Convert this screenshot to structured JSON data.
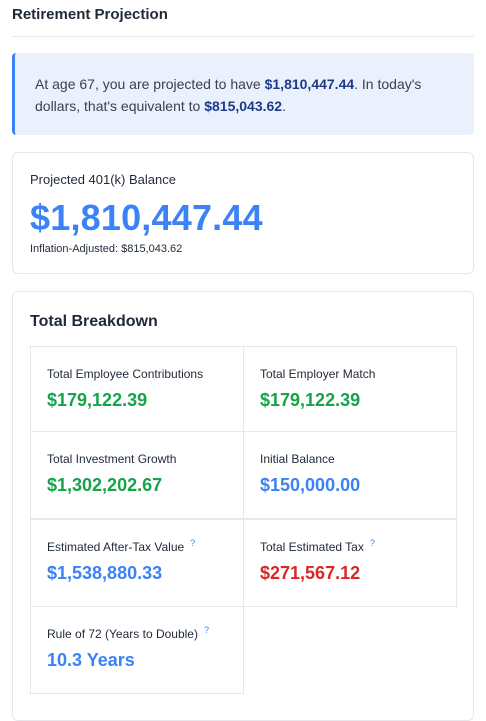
{
  "page": {
    "title": "Retirement Projection"
  },
  "summary": {
    "part1": "At age 67, you are projected to have ",
    "projected": "$1,810,447.44",
    "part2": ". In today's dollars, that's equivalent to ",
    "adjusted": "$815,043.62",
    "part3": "."
  },
  "balance": {
    "label": "Projected 401(k) Balance",
    "value": "$1,810,447.44",
    "sub": "Inflation-Adjusted: $815,043.62"
  },
  "breakdown": {
    "title": "Total Breakdown",
    "help_symbol": "?",
    "items": [
      {
        "label": "Total Employee Contributions",
        "value": "$179,122.39",
        "color": "#16a34a"
      },
      {
        "label": "Total Employer Match",
        "value": "$179,122.39",
        "color": "#16a34a"
      },
      {
        "label": "Total Investment Growth",
        "value": "$1,302,202.67",
        "color": "#16a34a"
      },
      {
        "label": "Initial Balance",
        "value": "$150,000.00",
        "color": "#3b82f6"
      },
      {
        "label": "Estimated After-Tax Value",
        "value": "$1,538,880.33",
        "color": "#3b82f6",
        "help": true
      },
      {
        "label": "Total Estimated Tax",
        "value": "$271,567.12",
        "color": "#dc2626",
        "help": true
      },
      {
        "label": "Rule of 72 (Years to Double)",
        "value": "10.3 Years",
        "color": "#3b82f6",
        "help": true
      }
    ]
  }
}
